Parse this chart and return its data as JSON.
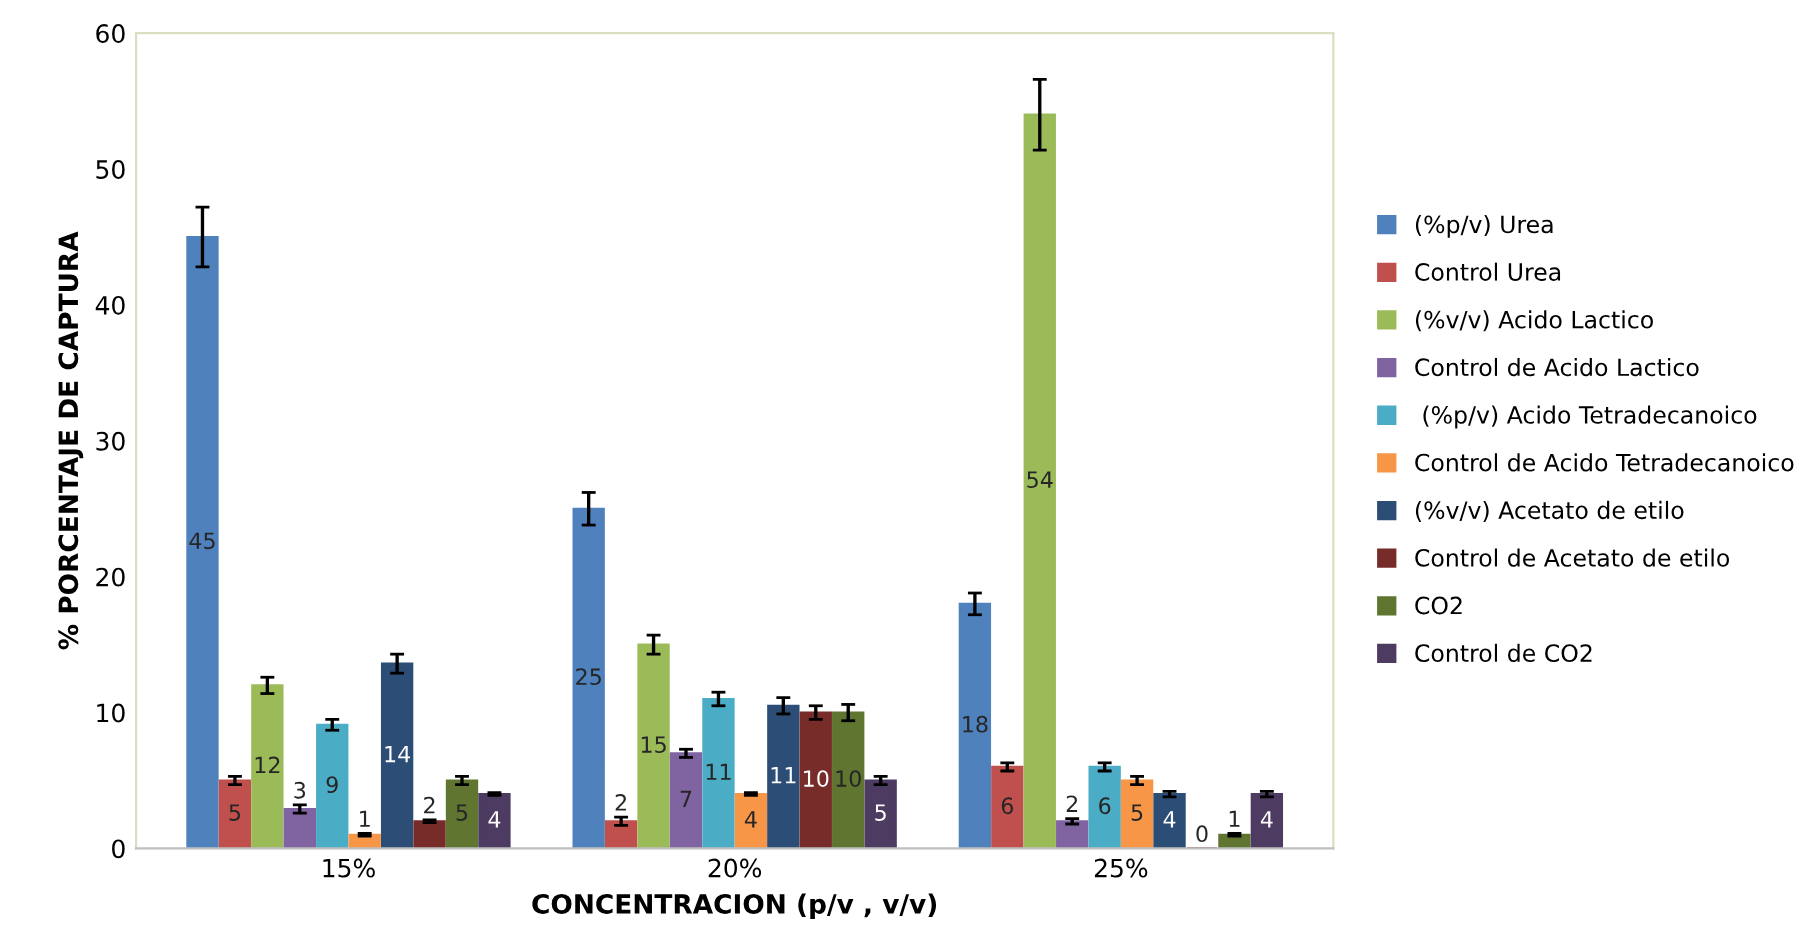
{
  "chart_data": {
    "type": "bar",
    "xlabel": "CONCENTRACION (p/v , v/v)",
    "ylabel": "% PORCENTAJE DE CAPTURA",
    "categories": [
      "15%",
      "20%",
      "25%"
    ],
    "ylim": [
      0,
      60
    ],
    "yticks": [
      0,
      10,
      20,
      30,
      40,
      50,
      60
    ],
    "grid": false,
    "legend": "right",
    "series": [
      {
        "name": "(%p/v) Urea",
        "color": "#4f81bd",
        "values": [
          45,
          25,
          18
        ],
        "errors": [
          2.2,
          1.2,
          0.8
        ],
        "value_labels": [
          "45",
          "25",
          "18"
        ]
      },
      {
        "name": "Control Urea",
        "color": "#c0504d",
        "values": [
          5,
          2,
          6
        ],
        "errors": [
          0.3,
          0.3,
          0.3
        ],
        "value_labels": [
          "5",
          "2",
          "6"
        ]
      },
      {
        "name": "(%v/v) Acido Lactico",
        "color": "#9bbb59",
        "values": [
          12,
          15,
          54
        ],
        "errors": [
          0.6,
          0.7,
          2.6
        ],
        "value_labels": [
          "12",
          "15",
          "54"
        ]
      },
      {
        "name": "Control de Acido Lactico",
        "color": "#8064a2",
        "values": [
          2.9,
          7,
          2
        ],
        "errors": [
          0.3,
          0.3,
          0.2
        ],
        "value_labels": [
          "3",
          "7",
          "2"
        ]
      },
      {
        "name": " (%p/v) Acido Tetradecanoico",
        "color": "#4bacc6",
        "values": [
          9.1,
          11,
          6
        ],
        "errors": [
          0.4,
          0.5,
          0.3
        ],
        "value_labels": [
          "9",
          "11",
          "6"
        ]
      },
      {
        "name": "Control de Acido Tetradecanoico",
        "color": "#f79646",
        "values": [
          1,
          4,
          5
        ],
        "errors": [
          0.1,
          0.1,
          0.3
        ],
        "value_labels": [
          "1",
          "4",
          "5"
        ]
      },
      {
        "name": "(%v/v) Acetato de etilo",
        "color": "#2c4d75",
        "values": [
          13.6,
          10.5,
          4
        ],
        "errors": [
          0.7,
          0.6,
          0.2
        ],
        "value_labels": [
          "14",
          "11",
          "4"
        ]
      },
      {
        "name": "Control de Acetato de etilo",
        "color": "#772c2a",
        "values": [
          2,
          10,
          0
        ],
        "errors": [
          0.1,
          0.5,
          null
        ],
        "value_labels": [
          "2",
          "10",
          "0"
        ]
      },
      {
        "name": "CO2",
        "color": "#5f7530",
        "values": [
          5,
          10,
          1
        ],
        "errors": [
          0.3,
          0.6,
          0.1
        ],
        "value_labels": [
          "5",
          "10",
          "1"
        ]
      },
      {
        "name": "Control de CO2",
        "color": "#4d3b62",
        "values": [
          4,
          5,
          4
        ],
        "errors": [
          0.1,
          0.3,
          0.2
        ],
        "value_labels": [
          "4",
          "5",
          "4"
        ]
      }
    ]
  }
}
